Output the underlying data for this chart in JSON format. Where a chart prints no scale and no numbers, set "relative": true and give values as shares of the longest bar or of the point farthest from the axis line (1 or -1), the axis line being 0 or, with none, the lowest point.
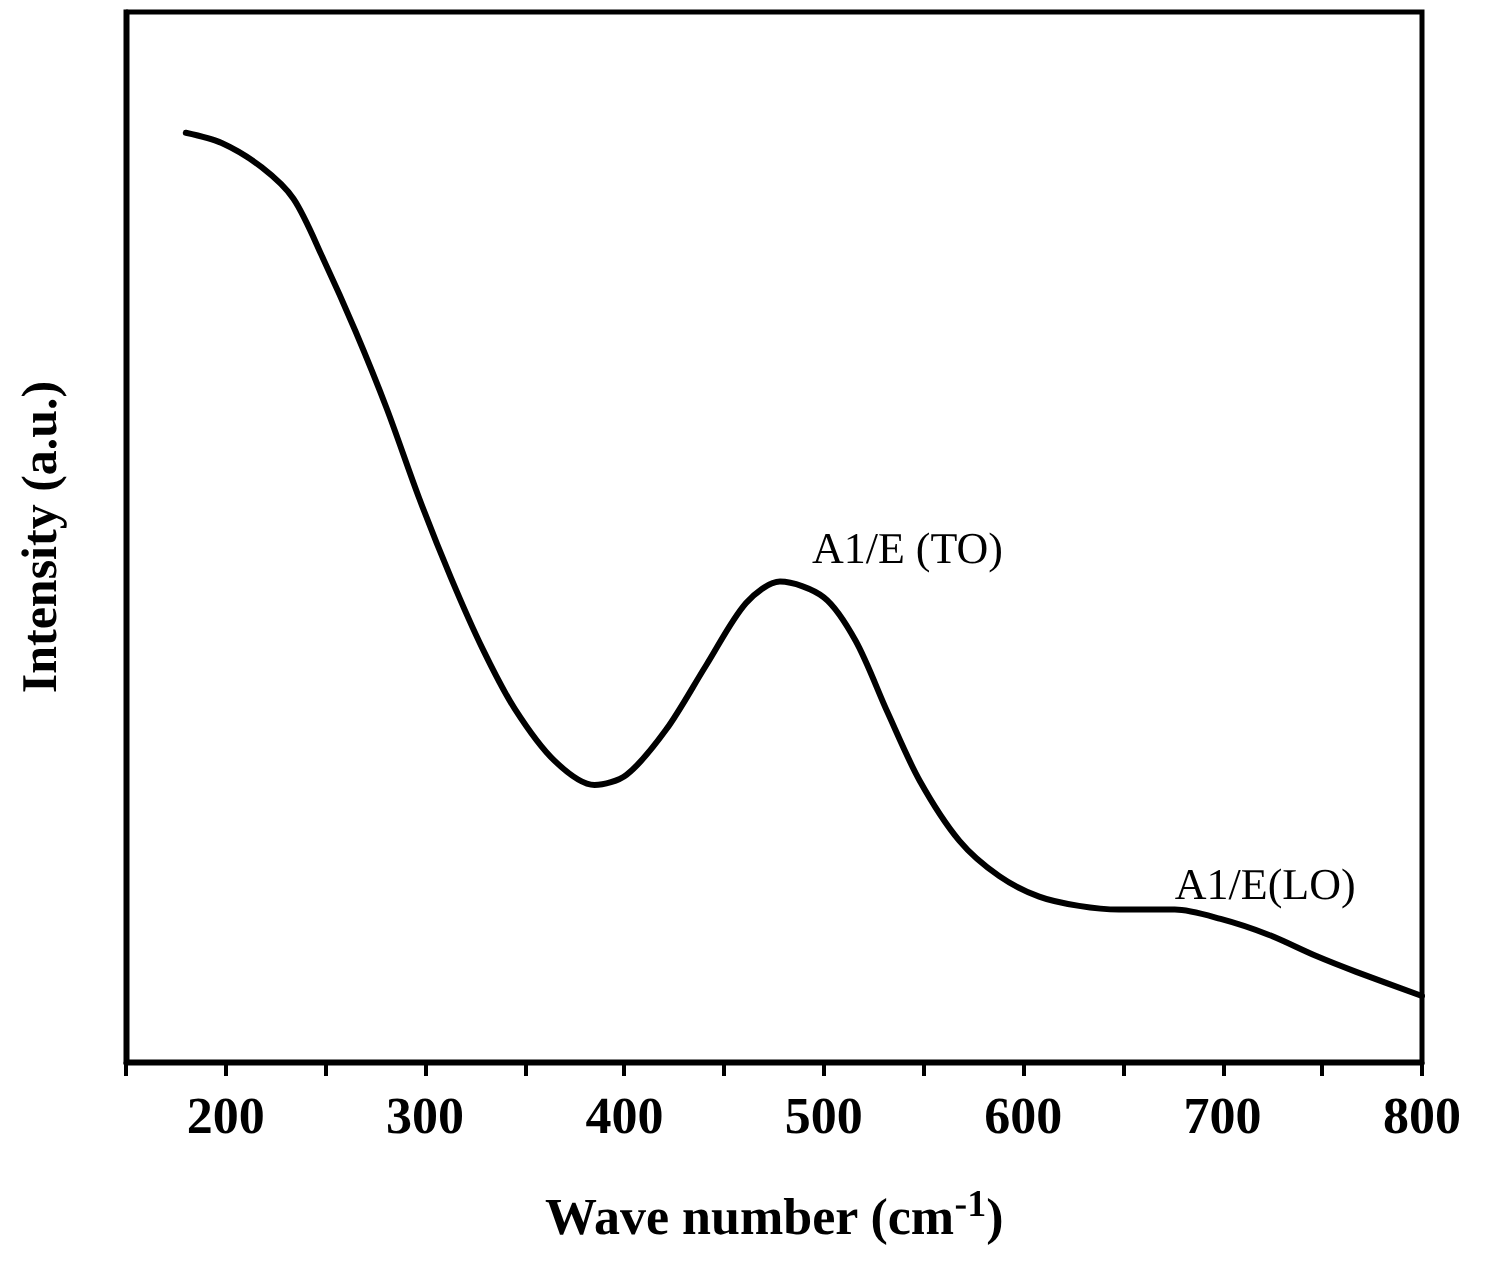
{
  "chart_data": {
    "type": "line",
    "relative": true,
    "xlabel": "Wave number (cm$^{-1}$)",
    "ylabel": "Intensity (a.u.)",
    "xlim": [
      150,
      800
    ],
    "xticks": [
      {
        "value": 150,
        "label": null
      },
      200,
      {
        "value": 250,
        "label": null
      },
      300,
      {
        "value": 350,
        "label": null
      },
      400,
      {
        "value": 450,
        "label": null
      },
      500,
      {
        "value": 550,
        "label": null
      },
      600,
      {
        "value": 650,
        "label": null
      },
      700,
      {
        "value": 750,
        "label": null
      },
      800
    ],
    "grid": false,
    "marker": "none",
    "line_style": "solid",
    "x": [
      180,
      198,
      218,
      234,
      249,
      265,
      281,
      297,
      313,
      329,
      345,
      365,
      385,
      401,
      421,
      441,
      461,
      478,
      500,
      516,
      532,
      548,
      568,
      588,
      608,
      628,
      648,
      676,
      699,
      723,
      747,
      767,
      800
    ],
    "series": [
      {
        "color": "#000000",
        "values": [
          1.0,
          0.989,
          0.963,
          0.929,
          0.864,
          0.787,
          0.702,
          0.607,
          0.521,
          0.444,
          0.38,
          0.324,
          0.298,
          0.309,
          0.358,
          0.427,
          0.494,
          0.517,
          0.5,
          0.453,
          0.376,
          0.303,
          0.238,
          0.2,
          0.178,
          0.168,
          0.164,
          0.164,
          0.154,
          0.137,
          0.114,
          0.097,
          0.071
        ]
      }
    ],
    "annotations": [
      {
        "text": "A1/E (TO)",
        "x": 478,
        "y": 0.517
      },
      {
        "text": "A1/E(LO)",
        "x": 676,
        "y": 0.164
      }
    ]
  }
}
